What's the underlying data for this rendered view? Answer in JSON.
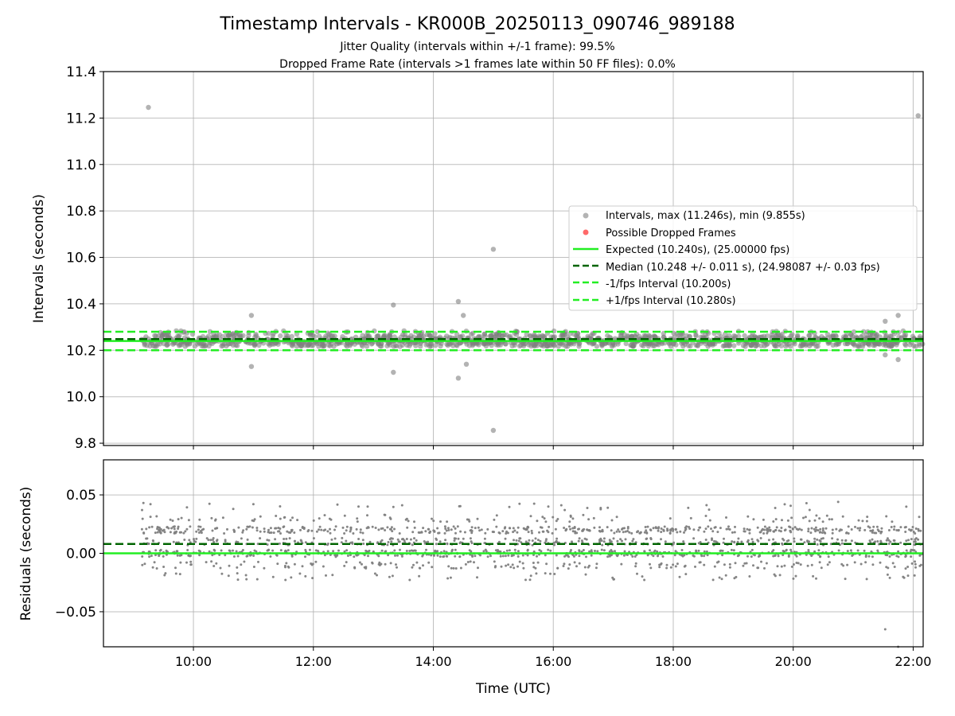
{
  "figure": {
    "title": "Timestamp Intervals - KR000B_20250113_090746_989188",
    "subtitle_1": "Jitter Quality (intervals within +/-1 frame): 99.5%",
    "subtitle_2": "Dropped Frame Rate (intervals >1 frames late within 50 FF files): 0.0%",
    "xlabel": "Time (UTC)"
  },
  "colors": {
    "interval_points": "#808080",
    "dropped_points": "#ff4444",
    "expected": "#22ee22",
    "median": "#006400",
    "fps_band": "#22ee22",
    "grid": "#b0b0b0"
  },
  "chart_data": [
    {
      "type": "scatter",
      "panel": "intervals",
      "ylabel": "Intervals (seconds)",
      "xlim": [
        "08:30",
        "22:10"
      ],
      "ylim": [
        9.79,
        11.4
      ],
      "x_ticks": [
        "10:00",
        "12:00",
        "14:00",
        "16:00",
        "18:00",
        "20:00",
        "22:00"
      ],
      "y_ticks": [
        9.8,
        10.0,
        10.2,
        10.4,
        10.6,
        10.8,
        11.0,
        11.2,
        11.4
      ],
      "y_tick_labels": [
        "9.8",
        "10.0",
        "10.2",
        "10.4",
        "10.6",
        "10.8",
        "11.0",
        "11.2",
        "11.4"
      ],
      "grid": true,
      "legend_position": "center-right",
      "data_span": [
        "09:08",
        "22:10"
      ],
      "series": [
        {
          "name": "Intervals, max (11.246s), min (9.855s)",
          "kind": "points",
          "bulk_values": [
            10.22,
            10.23,
            10.24,
            10.25,
            10.26,
            10.27,
            10.28
          ],
          "points": [
            {
              "x": "09:15",
              "y": 11.246
            },
            {
              "x": "22:05",
              "y": 11.21
            },
            {
              "x": "15:00",
              "y": 10.635
            },
            {
              "x": "14:25",
              "y": 10.41
            },
            {
              "x": "13:20",
              "y": 10.395
            },
            {
              "x": "14:30",
              "y": 10.35
            },
            {
              "x": "10:58",
              "y": 10.35
            },
            {
              "x": "21:45",
              "y": 10.35
            },
            {
              "x": "21:32",
              "y": 10.325
            },
            {
              "x": "10:58",
              "y": 10.13
            },
            {
              "x": "14:33",
              "y": 10.14
            },
            {
              "x": "13:20",
              "y": 10.105
            },
            {
              "x": "14:25",
              "y": 10.08
            },
            {
              "x": "21:32",
              "y": 10.18
            },
            {
              "x": "21:45",
              "y": 10.16
            },
            {
              "x": "15:00",
              "y": 9.855
            }
          ]
        },
        {
          "name": "Possible Dropped Frames",
          "kind": "points",
          "points": []
        },
        {
          "name": "Expected (10.240s), (25.00000 fps)",
          "kind": "hline",
          "y": 10.24,
          "style": "solid"
        },
        {
          "name": "Median (10.248 +/- 0.011 s), (24.98087 +/- 0.03 fps)",
          "kind": "hline",
          "y": 10.248,
          "style": "dashed"
        },
        {
          "name": "-1/fps Interval (10.200s)",
          "kind": "hline",
          "y": 10.2,
          "style": "dashed"
        },
        {
          "name": "+1/fps Interval (10.280s)",
          "kind": "hline",
          "y": 10.28,
          "style": "dashed"
        }
      ]
    },
    {
      "type": "scatter",
      "panel": "residuals",
      "ylabel": "Residuals (seconds)",
      "xlabel": "Time (UTC)",
      "xlim": [
        "08:30",
        "22:10"
      ],
      "ylim": [
        -0.08,
        0.08
      ],
      "x_ticks": [
        "10:00",
        "12:00",
        "14:00",
        "16:00",
        "18:00",
        "20:00",
        "22:00"
      ],
      "y_ticks": [
        -0.05,
        0.0,
        0.05
      ],
      "y_tick_labels": [
        "−0.05",
        "0.00",
        "0.05"
      ],
      "grid": true,
      "series": [
        {
          "name": "Residuals",
          "kind": "points",
          "bulk_values": [
            -0.02,
            -0.01,
            0.0,
            0.01,
            0.02,
            0.03,
            0.04
          ],
          "points": [
            {
              "x": "21:32",
              "y": -0.065
            },
            {
              "x": "21:45",
              "y": -0.08
            },
            {
              "x": "09:10",
              "y": 0.043
            },
            {
              "x": "11:00",
              "y": 0.042
            },
            {
              "x": "15:55",
              "y": 0.04
            },
            {
              "x": "20:45",
              "y": 0.044
            }
          ]
        },
        {
          "name": "Expected",
          "kind": "hline",
          "y": 0.0,
          "style": "solid"
        },
        {
          "name": "Median",
          "kind": "hline",
          "y": 0.008,
          "style": "dashed"
        }
      ]
    }
  ]
}
